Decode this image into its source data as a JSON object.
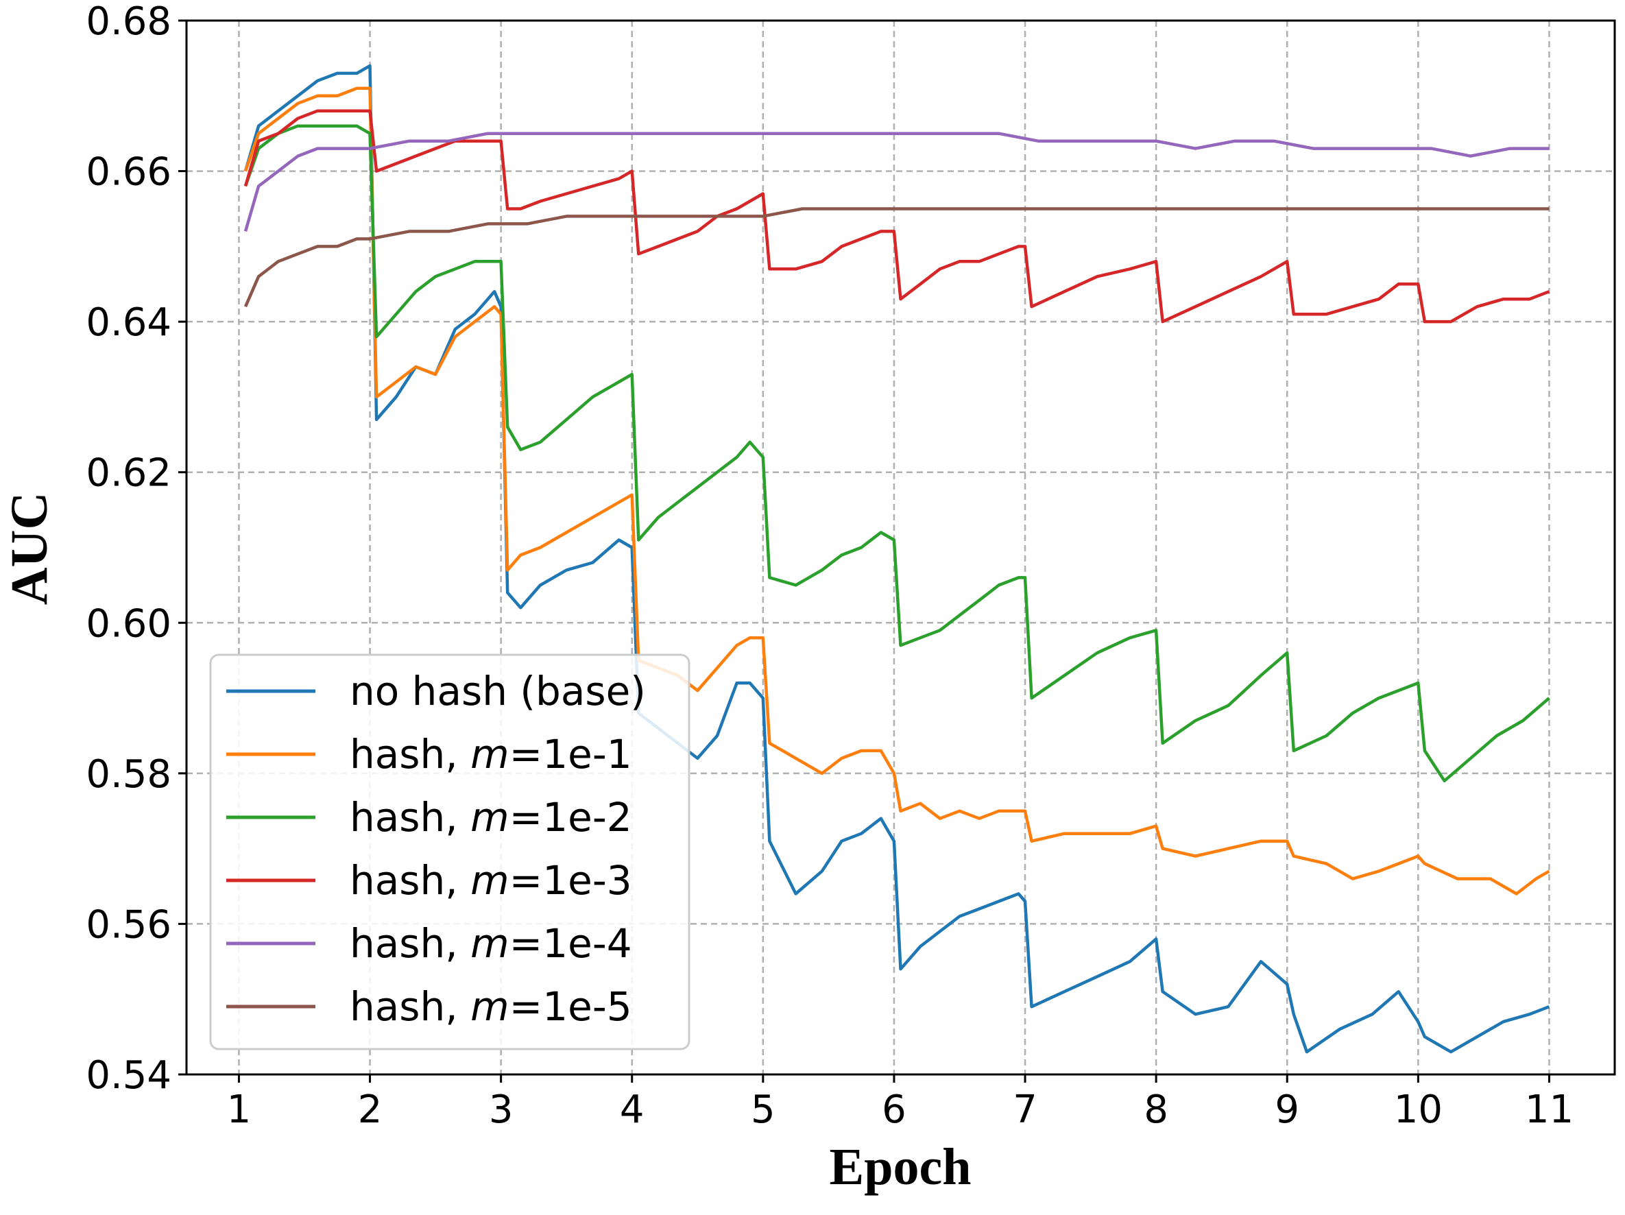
{
  "chart_data": {
    "type": "line",
    "title": "",
    "xlabel": "Epoch",
    "ylabel": "AUC",
    "xlim": [
      0.6,
      11.5
    ],
    "ylim": [
      0.54,
      0.68
    ],
    "xticks": [
      "1",
      "2",
      "3",
      "4",
      "5",
      "6",
      "7",
      "8",
      "9",
      "10",
      "11"
    ],
    "yticks": [
      "0.54",
      "0.56",
      "0.58",
      "0.60",
      "0.62",
      "0.64",
      "0.66",
      "0.68"
    ],
    "grid": true,
    "legend_position": "lower-left",
    "series": [
      {
        "name": "no hash (base)",
        "color": "#1f77b4",
        "x": [
          1.05,
          1.15,
          1.3,
          1.45,
          1.6,
          1.75,
          1.9,
          2.0,
          2.05,
          2.2,
          2.35,
          2.5,
          2.65,
          2.8,
          2.95,
          3.0,
          3.05,
          3.15,
          3.3,
          3.5,
          3.7,
          3.9,
          4.0,
          4.05,
          4.2,
          4.35,
          4.5,
          4.65,
          4.8,
          4.9,
          5.0,
          5.05,
          5.25,
          5.45,
          5.6,
          5.75,
          5.9,
          6.0,
          6.05,
          6.2,
          6.35,
          6.5,
          6.65,
          6.8,
          6.95,
          7.0,
          7.05,
          7.3,
          7.55,
          7.8,
          8.0,
          8.05,
          8.3,
          8.55,
          8.8,
          9.0,
          9.05,
          9.15,
          9.4,
          9.65,
          9.85,
          10.0,
          10.05,
          10.25,
          10.45,
          10.65,
          10.85,
          11.0
        ],
        "values": [
          0.66,
          0.666,
          0.668,
          0.67,
          0.672,
          0.673,
          0.673,
          0.674,
          0.627,
          0.63,
          0.634,
          0.633,
          0.639,
          0.641,
          0.644,
          0.642,
          0.604,
          0.602,
          0.605,
          0.607,
          0.608,
          0.611,
          0.61,
          0.588,
          0.586,
          0.584,
          0.582,
          0.585,
          0.592,
          0.592,
          0.59,
          0.571,
          0.564,
          0.567,
          0.571,
          0.572,
          0.574,
          0.571,
          0.554,
          0.557,
          0.559,
          0.561,
          0.562,
          0.563,
          0.564,
          0.563,
          0.549,
          0.551,
          0.553,
          0.555,
          0.558,
          0.551,
          0.548,
          0.549,
          0.555,
          0.552,
          0.548,
          0.543,
          0.546,
          0.548,
          0.551,
          0.547,
          0.545,
          0.543,
          0.545,
          0.547,
          0.548,
          0.549
        ]
      },
      {
        "name": "hash, m=1e-1",
        "color": "#ff7f0e",
        "x": [
          1.05,
          1.15,
          1.3,
          1.45,
          1.6,
          1.75,
          1.9,
          2.0,
          2.05,
          2.2,
          2.35,
          2.5,
          2.65,
          2.8,
          2.95,
          3.0,
          3.05,
          3.15,
          3.3,
          3.5,
          3.7,
          3.9,
          4.0,
          4.05,
          4.2,
          4.35,
          4.5,
          4.65,
          4.8,
          4.9,
          5.0,
          5.05,
          5.25,
          5.45,
          5.6,
          5.75,
          5.9,
          6.0,
          6.05,
          6.2,
          6.35,
          6.5,
          6.65,
          6.8,
          6.95,
          7.0,
          7.05,
          7.3,
          7.55,
          7.8,
          8.0,
          8.05,
          8.3,
          8.55,
          8.8,
          9.0,
          9.05,
          9.3,
          9.5,
          9.7,
          9.85,
          10.0,
          10.05,
          10.3,
          10.55,
          10.75,
          10.9,
          11.0
        ],
        "values": [
          0.66,
          0.665,
          0.667,
          0.669,
          0.67,
          0.67,
          0.671,
          0.671,
          0.63,
          0.632,
          0.634,
          0.633,
          0.638,
          0.64,
          0.642,
          0.641,
          0.607,
          0.609,
          0.61,
          0.612,
          0.614,
          0.616,
          0.617,
          0.595,
          0.594,
          0.593,
          0.591,
          0.594,
          0.597,
          0.598,
          0.598,
          0.584,
          0.582,
          0.58,
          0.582,
          0.583,
          0.583,
          0.58,
          0.575,
          0.576,
          0.574,
          0.575,
          0.574,
          0.575,
          0.575,
          0.575,
          0.571,
          0.572,
          0.572,
          0.572,
          0.573,
          0.57,
          0.569,
          0.57,
          0.571,
          0.571,
          0.569,
          0.568,
          0.566,
          0.567,
          0.568,
          0.569,
          0.568,
          0.566,
          0.566,
          0.564,
          0.566,
          0.567
        ]
      },
      {
        "name": "hash, m=1e-2",
        "color": "#2ca02c",
        "x": [
          1.05,
          1.15,
          1.3,
          1.45,
          1.6,
          1.75,
          1.9,
          2.0,
          2.05,
          2.2,
          2.35,
          2.5,
          2.65,
          2.8,
          2.95,
          3.0,
          3.05,
          3.15,
          3.3,
          3.5,
          3.7,
          3.9,
          4.0,
          4.05,
          4.2,
          4.35,
          4.5,
          4.65,
          4.8,
          4.9,
          5.0,
          5.05,
          5.25,
          5.45,
          5.6,
          5.75,
          5.9,
          6.0,
          6.05,
          6.2,
          6.35,
          6.5,
          6.65,
          6.8,
          6.95,
          7.0,
          7.05,
          7.3,
          7.55,
          7.8,
          8.0,
          8.05,
          8.3,
          8.55,
          8.8,
          9.0,
          9.05,
          9.3,
          9.5,
          9.7,
          9.85,
          10.0,
          10.05,
          10.2,
          10.4,
          10.6,
          10.8,
          11.0
        ],
        "values": [
          0.658,
          0.663,
          0.665,
          0.666,
          0.666,
          0.666,
          0.666,
          0.665,
          0.638,
          0.641,
          0.644,
          0.646,
          0.647,
          0.648,
          0.648,
          0.648,
          0.626,
          0.623,
          0.624,
          0.627,
          0.63,
          0.632,
          0.633,
          0.611,
          0.614,
          0.616,
          0.618,
          0.62,
          0.622,
          0.624,
          0.622,
          0.606,
          0.605,
          0.607,
          0.609,
          0.61,
          0.612,
          0.611,
          0.597,
          0.598,
          0.599,
          0.601,
          0.603,
          0.605,
          0.606,
          0.606,
          0.59,
          0.593,
          0.596,
          0.598,
          0.599,
          0.584,
          0.587,
          0.589,
          0.593,
          0.596,
          0.583,
          0.585,
          0.588,
          0.59,
          0.591,
          0.592,
          0.583,
          0.579,
          0.582,
          0.585,
          0.587,
          0.59
        ]
      },
      {
        "name": "hash, m=1e-3",
        "color": "#d62728",
        "x": [
          1.05,
          1.15,
          1.3,
          1.45,
          1.6,
          1.75,
          1.9,
          2.0,
          2.05,
          2.2,
          2.35,
          2.5,
          2.65,
          2.8,
          2.95,
          3.0,
          3.05,
          3.15,
          3.3,
          3.5,
          3.7,
          3.9,
          4.0,
          4.05,
          4.2,
          4.35,
          4.5,
          4.65,
          4.8,
          4.9,
          5.0,
          5.05,
          5.25,
          5.45,
          5.6,
          5.75,
          5.9,
          6.0,
          6.05,
          6.2,
          6.35,
          6.5,
          6.65,
          6.8,
          6.95,
          7.0,
          7.05,
          7.3,
          7.55,
          7.8,
          8.0,
          8.05,
          8.3,
          8.55,
          8.8,
          9.0,
          9.05,
          9.3,
          9.5,
          9.7,
          9.85,
          10.0,
          10.05,
          10.25,
          10.45,
          10.65,
          10.85,
          11.0
        ],
        "values": [
          0.658,
          0.664,
          0.665,
          0.667,
          0.668,
          0.668,
          0.668,
          0.668,
          0.66,
          0.661,
          0.662,
          0.663,
          0.664,
          0.664,
          0.664,
          0.664,
          0.655,
          0.655,
          0.656,
          0.657,
          0.658,
          0.659,
          0.66,
          0.649,
          0.65,
          0.651,
          0.652,
          0.654,
          0.655,
          0.656,
          0.657,
          0.647,
          0.647,
          0.648,
          0.65,
          0.651,
          0.652,
          0.652,
          0.643,
          0.645,
          0.647,
          0.648,
          0.648,
          0.649,
          0.65,
          0.65,
          0.642,
          0.644,
          0.646,
          0.647,
          0.648,
          0.64,
          0.642,
          0.644,
          0.646,
          0.648,
          0.641,
          0.641,
          0.642,
          0.643,
          0.645,
          0.645,
          0.64,
          0.64,
          0.642,
          0.643,
          0.643,
          0.644
        ]
      },
      {
        "name": "hash, m=1e-4",
        "color": "#9467bd",
        "x": [
          1.05,
          1.15,
          1.3,
          1.45,
          1.6,
          1.75,
          1.9,
          2.0,
          2.3,
          2.6,
          2.9,
          3.2,
          3.5,
          3.8,
          4.1,
          4.4,
          4.7,
          5.0,
          5.3,
          5.6,
          5.9,
          6.2,
          6.5,
          6.8,
          7.1,
          7.4,
          7.7,
          8.0,
          8.3,
          8.6,
          8.9,
          9.2,
          9.5,
          9.8,
          10.1,
          10.4,
          10.7,
          11.0
        ],
        "values": [
          0.652,
          0.658,
          0.66,
          0.662,
          0.663,
          0.663,
          0.663,
          0.663,
          0.664,
          0.664,
          0.665,
          0.665,
          0.665,
          0.665,
          0.665,
          0.665,
          0.665,
          0.665,
          0.665,
          0.665,
          0.665,
          0.665,
          0.665,
          0.665,
          0.664,
          0.664,
          0.664,
          0.664,
          0.663,
          0.664,
          0.664,
          0.663,
          0.663,
          0.663,
          0.663,
          0.662,
          0.663,
          0.663
        ]
      },
      {
        "name": "hash, m=1e-5",
        "color": "#8c564b",
        "x": [
          1.05,
          1.15,
          1.3,
          1.45,
          1.6,
          1.75,
          1.9,
          2.0,
          2.3,
          2.6,
          2.9,
          3.2,
          3.5,
          3.8,
          4.1,
          4.4,
          4.7,
          5.0,
          5.3,
          5.6,
          5.9,
          6.2,
          6.5,
          6.8,
          7.1,
          7.4,
          7.7,
          8.0,
          8.3,
          8.6,
          8.9,
          9.2,
          9.5,
          9.8,
          10.1,
          10.4,
          10.7,
          11.0
        ],
        "values": [
          0.642,
          0.646,
          0.648,
          0.649,
          0.65,
          0.65,
          0.651,
          0.651,
          0.652,
          0.652,
          0.653,
          0.653,
          0.654,
          0.654,
          0.654,
          0.654,
          0.654,
          0.654,
          0.655,
          0.655,
          0.655,
          0.655,
          0.655,
          0.655,
          0.655,
          0.655,
          0.655,
          0.655,
          0.655,
          0.655,
          0.655,
          0.655,
          0.655,
          0.655,
          0.655,
          0.655,
          0.655,
          0.655
        ]
      }
    ]
  },
  "legend": {
    "items": [
      {
        "prefix": "no hash (base)",
        "italic": "",
        "suffix": ""
      },
      {
        "prefix": "hash, ",
        "italic": "m",
        "suffix": "=1e-1"
      },
      {
        "prefix": "hash, ",
        "italic": "m",
        "suffix": "=1e-2"
      },
      {
        "prefix": "hash, ",
        "italic": "m",
        "suffix": "=1e-3"
      },
      {
        "prefix": "hash, ",
        "italic": "m",
        "suffix": "=1e-4"
      },
      {
        "prefix": "hash, ",
        "italic": "m",
        "suffix": "=1e-5"
      }
    ]
  }
}
